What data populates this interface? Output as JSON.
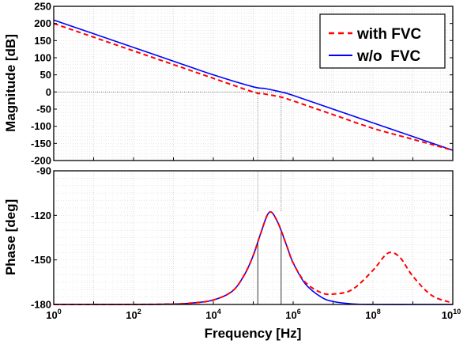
{
  "chart_data": [
    {
      "type": "line",
      "title": "",
      "xlabel": "",
      "ylabel": "Magnitude [dB]",
      "xscale": "log",
      "xlim": [
        1,
        10000000000
      ],
      "ylim": [
        -200,
        250
      ],
      "grid": true,
      "yticks": [
        "250",
        "200",
        "150",
        "100",
        "50",
        "0",
        "-50",
        "-100",
        "-150",
        "-200"
      ],
      "legend": {
        "placement": "top-right"
      },
      "series": [
        {
          "name": "with FVC",
          "color": "#ff0000",
          "style": "dashed",
          "x": [
            1,
            10,
            100,
            1000,
            10000,
            100000,
            200000,
            500000,
            1000000,
            10000000,
            100000000,
            1000000000,
            10000000000
          ],
          "y": [
            200,
            160,
            120,
            80,
            40,
            0,
            -6,
            -15,
            -26,
            -66,
            -106,
            -138,
            -170
          ]
        },
        {
          "name": "w/o  FVC",
          "color": "#0000ff",
          "style": "solid",
          "x": [
            1,
            10,
            100,
            1000,
            10000,
            100000,
            200000,
            500000,
            1000000,
            10000000,
            100000000,
            1000000000,
            10000000000
          ],
          "y": [
            210,
            170,
            130,
            90,
            50,
            15,
            10,
            0,
            -10,
            -50,
            -90,
            -130,
            -170
          ]
        }
      ],
      "reference_lines": {
        "y": 0,
        "x": [
          130000,
          500000
        ]
      }
    },
    {
      "type": "line",
      "title": "",
      "xlabel": "Frequency [Hz]",
      "ylabel": "Phase [deg]",
      "xscale": "log",
      "xlim": [
        1,
        10000000000
      ],
      "ylim": [
        -180,
        -90
      ],
      "grid": true,
      "yticks": [
        "-90",
        "-120",
        "-150",
        "-180"
      ],
      "xticks": [
        {
          "base": "10",
          "exp": "0"
        },
        {
          "base": "10",
          "exp": "2"
        },
        {
          "base": "10",
          "exp": "4"
        },
        {
          "base": "10",
          "exp": "6"
        },
        {
          "base": "10",
          "exp": "8"
        },
        {
          "base": "10",
          "exp": "10"
        }
      ],
      "series": [
        {
          "name": "with FVC",
          "color": "#ff0000",
          "style": "dashed",
          "x": [
            1,
            10,
            100,
            1000,
            3000,
            10000,
            30000,
            60000,
            100000,
            150000,
            250000,
            400000,
            700000,
            1000000,
            2000000,
            5000000,
            10000000,
            30000000,
            100000000,
            200000000,
            300000000,
            500000000,
            1000000000,
            3000000000,
            10000000000
          ],
          "y": [
            -180,
            -180,
            -180,
            -179.7,
            -179,
            -177,
            -171,
            -160,
            -147,
            -133,
            -118,
            -124,
            -141,
            -152,
            -165,
            -172,
            -173,
            -170,
            -157,
            -147,
            -145,
            -149,
            -161,
            -174,
            -179
          ]
        },
        {
          "name": "w/o  FVC",
          "color": "#0000ff",
          "style": "solid",
          "x": [
            1,
            10,
            100,
            1000,
            3000,
            10000,
            30000,
            60000,
            100000,
            150000,
            250000,
            400000,
            700000,
            1000000,
            2000000,
            5000000,
            10000000,
            30000000,
            100000000,
            1000000000,
            10000000000
          ],
          "y": [
            -180,
            -180,
            -180,
            -179.7,
            -179,
            -177,
            -171,
            -160,
            -147,
            -133,
            -118,
            -124,
            -141,
            -152,
            -166,
            -175,
            -178,
            -179.6,
            -180,
            -180,
            -180
          ]
        }
      ],
      "reference_lines": {
        "x": [
          130000,
          500000
        ]
      }
    }
  ]
}
